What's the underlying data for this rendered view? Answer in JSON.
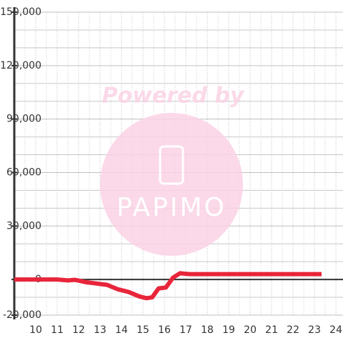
{
  "chart_data": {
    "type": "line",
    "x": [
      9,
      11,
      11.5,
      11.83,
      12.33,
      13.33,
      13.83,
      14.33,
      14.83,
      15.17,
      15.43,
      15.73,
      16.07,
      16.4,
      16.73,
      17.17,
      23.33
    ],
    "values": [
      0,
      0,
      -500,
      -200,
      -1500,
      -3000,
      -5500,
      -7000,
      -9500,
      -10500,
      -10000,
      -5000,
      -4500,
      1000,
      3500,
      3000,
      3000
    ],
    "color": "#e8253a",
    "xlim": [
      9,
      24.33
    ],
    "xticks": [
      10,
      11,
      12,
      13,
      14,
      15,
      16,
      17,
      18,
      19,
      20,
      21,
      22,
      23,
      24
    ],
    "minor_xticks": [
      9.5,
      10.5,
      11.5,
      12.5,
      13.5,
      14.5,
      15.5,
      16.5,
      17.5,
      18.5,
      19.5,
      20.5,
      21.5,
      22.5,
      23.5
    ],
    "ylim": [
      -20000,
      150000
    ],
    "yticks": [
      {
        "value": -20000,
        "label": "-20,000"
      },
      0,
      {
        "value": 30000,
        "label": "30,000"
      },
      {
        "value": 60000,
        "label": "60,000"
      },
      {
        "value": 90000,
        "label": "90,000"
      },
      {
        "value": 120000,
        "label": "120,000"
      },
      {
        "value": 150000,
        "label": "150,000"
      }
    ],
    "minor_yticks": [
      -10000,
      10000,
      20000,
      40000,
      50000,
      70000,
      80000,
      100000,
      110000,
      130000,
      140000
    ],
    "grid": true,
    "watermark": {
      "title": "Powered by",
      "brand": "PAPIMO"
    }
  }
}
